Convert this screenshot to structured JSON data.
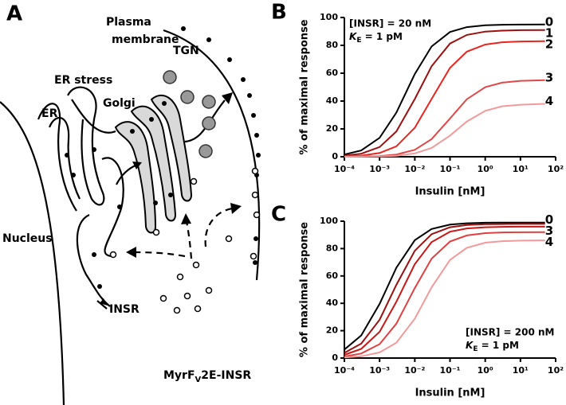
{
  "panels": {
    "a": "A",
    "b": "B",
    "c": "C"
  },
  "diagram": {
    "plasma_membrane": [
      "Plasma",
      "membrane"
    ],
    "tgn": "TGN",
    "er_stress": "ER stress",
    "golgi": "Golgi",
    "er": "ER",
    "nucleus": "Nucleus",
    "insr": "INSR",
    "construct": [
      "MyrF",
      "V",
      "2E-INSR"
    ]
  },
  "chart_data": [
    {
      "type": "line",
      "xlabel": "Insulin [nM]",
      "ylabel": "% of maximal response",
      "xscale": "log",
      "x": [
        0.0001,
        0.0003,
        0.001,
        0.003,
        0.01,
        0.03,
        0.1,
        0.3,
        1,
        3,
        10,
        50
      ],
      "xlim": [
        0.0001,
        100
      ],
      "xticks": [
        {
          "value": 0.0001,
          "label": "10⁻⁴"
        },
        {
          "value": 0.001,
          "label": "10⁻³"
        },
        {
          "value": 0.01,
          "label": "10⁻²"
        },
        {
          "value": 0.1,
          "label": "10⁻¹"
        },
        {
          "value": 1,
          "label": "10⁰"
        },
        {
          "value": 10,
          "label": "10¹"
        },
        {
          "value": 100,
          "label": "10²"
        }
      ],
      "ylim": [
        0,
        100
      ],
      "yticks": [
        0,
        20,
        40,
        60,
        80,
        100
      ],
      "annotation": {
        "line1": "[INSR] = 20 nM",
        "line2": [
          "K",
          "E",
          " = 1 pM"
        ]
      },
      "annotation_corner": "upper left",
      "series": [
        {
          "name": "0",
          "color": "#000000",
          "values": [
            1.6,
            4.5,
            13.6,
            31.7,
            59.4,
            79.2,
            89.6,
            93.1,
            94.4,
            94.8,
            94.9,
            95
          ]
        },
        {
          "name": "1",
          "color": "#9b0f0f",
          "values": [
            0.8,
            2.2,
            7.0,
            18.2,
            41.4,
            65.0,
            81.3,
            87.5,
            89.9,
            90.6,
            90.9,
            91
          ]
        },
        {
          "name": "2",
          "color": "#e8251f",
          "values": [
            0.3,
            0.8,
            2.7,
            7.5,
            20.8,
            41.5,
            63.8,
            75.5,
            80.6,
            82.2,
            82.8,
            83
          ]
        },
        {
          "name": "3",
          "color": "#e04848",
          "values": [
            0.1,
            0.2,
            0.5,
            1.6,
            5.0,
            12.7,
            27.5,
            41.3,
            50.0,
            53.2,
            54.5,
            55
          ]
        },
        {
          "name": "4",
          "color": "#f29a9a",
          "values": [
            0.0,
            0.1,
            0.3,
            0.7,
            2.4,
            6.3,
            15.2,
            25.3,
            33.0,
            36.2,
            37.4,
            38
          ]
        }
      ]
    },
    {
      "type": "line",
      "xlabel": "Insulin [nM]",
      "ylabel": "% of maximal response",
      "xscale": "log",
      "x": [
        0.0001,
        0.0003,
        0.001,
        0.003,
        0.01,
        0.03,
        0.1,
        0.3,
        1,
        3,
        10,
        50
      ],
      "xlim": [
        0.0001,
        100
      ],
      "xticks": [
        {
          "value": 0.0001,
          "label": "10⁻⁴"
        },
        {
          "value": 0.001,
          "label": "10⁻³"
        },
        {
          "value": 0.01,
          "label": "10⁻²"
        },
        {
          "value": 0.1,
          "label": "10⁻¹"
        },
        {
          "value": 1,
          "label": "10⁰"
        },
        {
          "value": 10,
          "label": "10¹"
        },
        {
          "value": 100,
          "label": "10²"
        }
      ],
      "ylim": [
        0,
        100
      ],
      "yticks": [
        0,
        20,
        40,
        60,
        80,
        100
      ],
      "annotation": {
        "line1": "[INSR] = 200 nM",
        "line2": [
          "K",
          "E",
          " = 1 pM"
        ]
      },
      "annotation_corner": "lower right",
      "series": [
        {
          "name": "0",
          "color": "#000000",
          "values": [
            6.2,
            16.5,
            39.6,
            66.0,
            86.1,
            94.3,
            97.5,
            98.5,
            98.9,
            99,
            99,
            99
          ]
        },
        {
          "color": "#9b0f0f",
          "values": [
            3.8,
            10.5,
            28.0,
            53.5,
            78.4,
            90.5,
            95.6,
            97.2,
            97.8,
            97.9,
            98,
            98
          ]
        },
        {
          "color": "#c81818",
          "values": [
            2.3,
            6.7,
            19.2,
            41.1,
            68.6,
            84.7,
            92.3,
            94.7,
            95.6,
            95.9,
            96,
            96
          ]
        },
        {
          "name": "3",
          "color": "#e04040",
          "values": [
            1.1,
            3.3,
            10.2,
            25.1,
            51.1,
            72.6,
            85.2,
            89.6,
            91.3,
            91.8,
            91.9,
            92
          ]
        },
        {
          "name": "4",
          "color": "#f29a9a",
          "values": [
            0.4,
            1.3,
            4.1,
            11.2,
            28.7,
            51.6,
            71.7,
            80.6,
            84.3,
            85.4,
            85.8,
            86
          ]
        }
      ]
    }
  ]
}
